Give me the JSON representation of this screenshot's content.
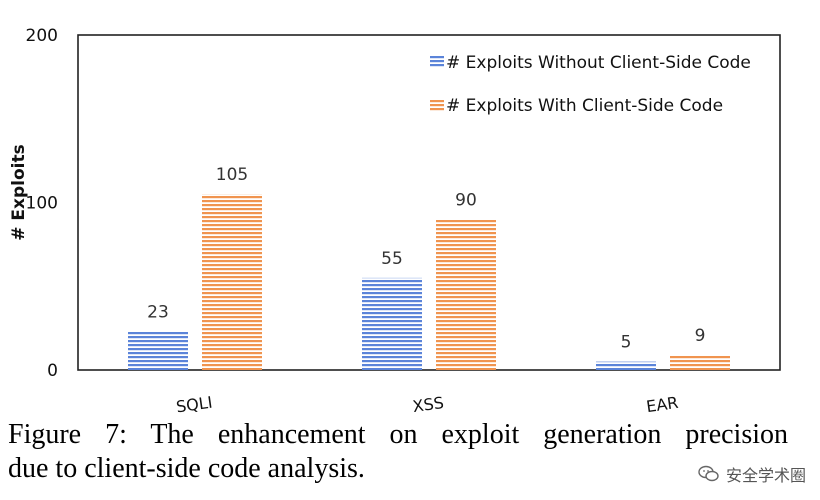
{
  "chart_data": {
    "type": "bar",
    "categories": [
      "SQLI",
      "XSS",
      "EAR"
    ],
    "series": [
      {
        "name": "# Exploits Without Client-Side Code",
        "values": [
          23,
          55,
          5
        ],
        "color": "#5b84d9"
      },
      {
        "name": "# Exploits With Client-Side Code",
        "values": [
          105,
          90,
          9
        ],
        "color": "#f0944f"
      }
    ],
    "title": "",
    "xlabel": "",
    "ylabel": "# Exploits",
    "ylim": [
      0,
      200
    ],
    "yticks": [
      0,
      100,
      200
    ],
    "grid": false,
    "legend_position": "top-right"
  },
  "caption": {
    "line1": "Figure 7:  The enhancement on exploit generation precision",
    "line2": "due to client-side code analysis."
  },
  "watermark": {
    "text": "安全学术圈"
  }
}
